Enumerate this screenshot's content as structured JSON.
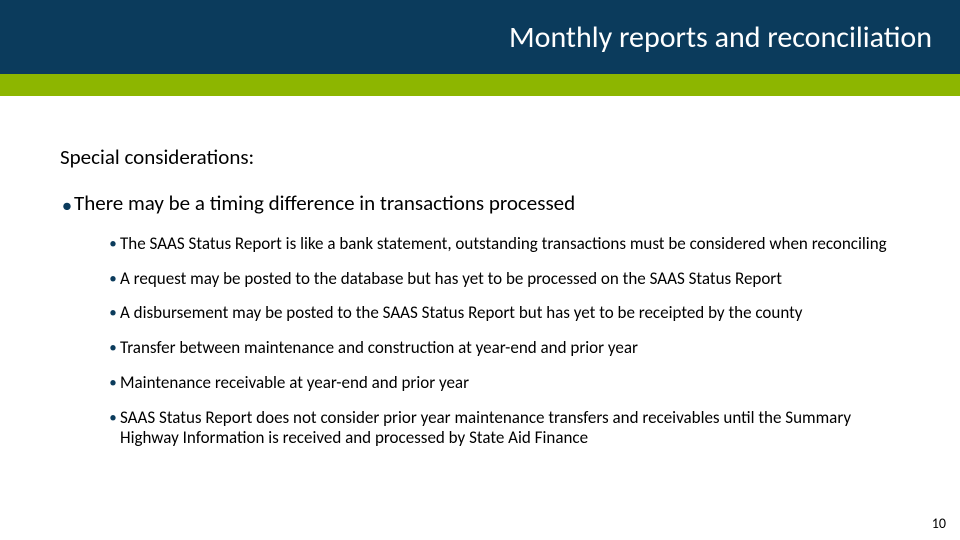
{
  "colors": {
    "header_bg": "#0b3b5c",
    "accent_bar": "#8db600",
    "bullet_color": "#0b3b5c",
    "text_color": "#000000",
    "background": "#ffffff"
  },
  "typography": {
    "title_fontsize": 30,
    "section_fontsize": 21,
    "lvl1_fontsize": 21,
    "lvl2_fontsize": 17,
    "page_number_fontsize": 14,
    "font_family": "Segoe UI / Calibri"
  },
  "layout": {
    "slide_width": 960,
    "slide_height": 540,
    "title_band_height": 74,
    "accent_band_height": 22
  },
  "title": "Monthly reports and reconciliation",
  "section_title": "Special considerations:",
  "bullets": {
    "lvl1_0": "There may be a timing difference in transactions processed",
    "lvl2_0": "The SAAS Status Report is like a bank statement, outstanding transactions must be considered when reconciling",
    "lvl2_1": "A request may be posted to the database but has yet to be processed on the SAAS Status Report",
    "lvl2_2": "A disbursement may be posted to the SAAS Status Report but has yet to be receipted by the county",
    "lvl2_3": "Transfer between maintenance and construction at year-end and prior year",
    "lvl2_4": "Maintenance receivable at year-end and prior year",
    "lvl2_5": "SAAS Status Report does not consider prior year maintenance transfers and receivables until the Summary Highway Information is received and processed by State Aid Finance"
  },
  "page_number": "10"
}
